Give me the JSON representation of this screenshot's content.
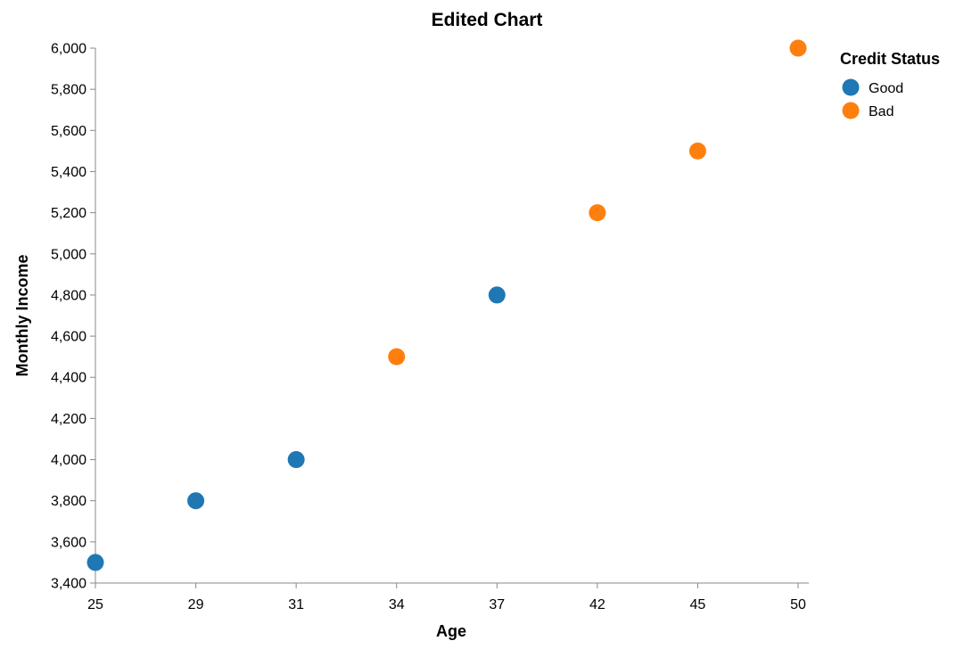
{
  "chart_data": {
    "type": "scatter",
    "title": "Edited Chart",
    "xlabel": "Age",
    "ylabel": "Monthly Income",
    "x_categories": [
      "25",
      "29",
      "31",
      "34",
      "37",
      "42",
      "45",
      "50"
    ],
    "y_ticks": [
      3400,
      3600,
      3800,
      4000,
      4200,
      4400,
      4600,
      4800,
      5000,
      5200,
      5400,
      5600,
      5800,
      6000
    ],
    "y_tick_labels": [
      "3,400",
      "3,600",
      "3,800",
      "4,000",
      "4,200",
      "4,400",
      "4,600",
      "4,800",
      "5,000",
      "5,200",
      "5,400",
      "5,600",
      "5,800",
      "6,000"
    ],
    "ylim": [
      3400,
      6000
    ],
    "grid": false,
    "legend": {
      "title": "Credit Status",
      "placement": "top-right"
    },
    "series": [
      {
        "name": "Good",
        "color": "#1f77b4",
        "points": [
          {
            "x": "25",
            "y": 3500
          },
          {
            "x": "29",
            "y": 3800
          },
          {
            "x": "31",
            "y": 4000
          },
          {
            "x": "37",
            "y": 4800
          }
        ]
      },
      {
        "name": "Bad",
        "color": "#ff7f0e",
        "points": [
          {
            "x": "34",
            "y": 4500
          },
          {
            "x": "42",
            "y": 5200
          },
          {
            "x": "45",
            "y": 5500
          },
          {
            "x": "50",
            "y": 6000
          }
        ]
      }
    ]
  }
}
